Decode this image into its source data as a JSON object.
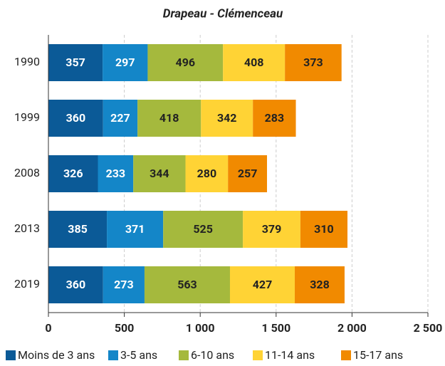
{
  "chart_data": {
    "type": "stacked-barh",
    "title": "Drapeau - Clémenceau",
    "categories": [
      "1990",
      "1999",
      "2008",
      "2013",
      "2019"
    ],
    "series": [
      {
        "name": "Moins de 3 ans",
        "color": "#0b5a97",
        "values": [
          357,
          360,
          326,
          385,
          360
        ]
      },
      {
        "name": "3-5 ans",
        "color": "#1486c8",
        "values": [
          297,
          227,
          233,
          371,
          273
        ]
      },
      {
        "name": "6-10 ans",
        "color": "#a5b93d",
        "values": [
          496,
          418,
          344,
          525,
          563
        ]
      },
      {
        "name": "11-14 ans",
        "color": "#ffd335",
        "values": [
          408,
          342,
          280,
          379,
          427
        ]
      },
      {
        "name": "15-17 ans",
        "color": "#f18a00",
        "values": [
          373,
          283,
          257,
          310,
          328
        ]
      }
    ],
    "xlim": [
      0,
      2500
    ],
    "xticks": [
      0,
      500,
      {
        "value": 1000,
        "label": "1 000"
      },
      {
        "value": 1500,
        "label": "1 500"
      },
      {
        "value": 2000,
        "label": "2 000"
      },
      {
        "value": 2500,
        "label": "2 500"
      }
    ],
    "grid": true,
    "legend": "bottom"
  }
}
